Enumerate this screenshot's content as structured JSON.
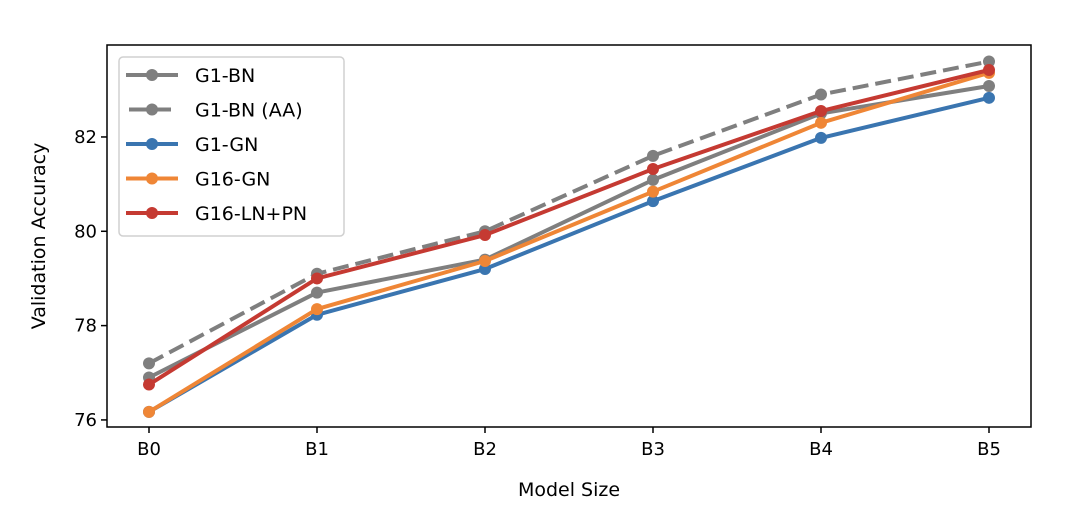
{
  "chart_data": {
    "type": "line",
    "title": "",
    "xlabel": "Model Size",
    "ylabel": "Validation Accuracy",
    "categories": [
      "B0",
      "B1",
      "B2",
      "B3",
      "B4",
      "B5"
    ],
    "ylim": [
      75.85,
      83.95
    ],
    "yticks": [
      76,
      78,
      80,
      82
    ],
    "ytick_labels": [
      "76",
      "78",
      "80",
      "82"
    ],
    "grid": false,
    "legend_position": "top-left",
    "series": [
      {
        "name": "G1-BN",
        "color": "#7f7f7f",
        "dashed": false,
        "values": [
          76.9,
          78.7,
          79.4,
          81.09,
          82.5,
          83.08
        ]
      },
      {
        "name": "G1-BN (AA)",
        "color": "#7f7f7f",
        "dashed": true,
        "values": [
          77.2,
          79.1,
          80.0,
          81.6,
          82.9,
          83.6
        ]
      },
      {
        "name": "G1-GN",
        "color": "#3a75b0",
        "dashed": false,
        "values": [
          76.17,
          78.23,
          79.2,
          80.64,
          81.98,
          82.83
        ]
      },
      {
        "name": "G16-GN",
        "color": "#ef8636",
        "dashed": false,
        "values": [
          76.17,
          78.35,
          79.37,
          80.84,
          82.3,
          83.36
        ]
      },
      {
        "name": "G16-LN+PN",
        "color": "#c53a32",
        "dashed": false,
        "values": [
          76.75,
          79.0,
          79.92,
          81.32,
          82.55,
          83.42
        ]
      }
    ]
  }
}
